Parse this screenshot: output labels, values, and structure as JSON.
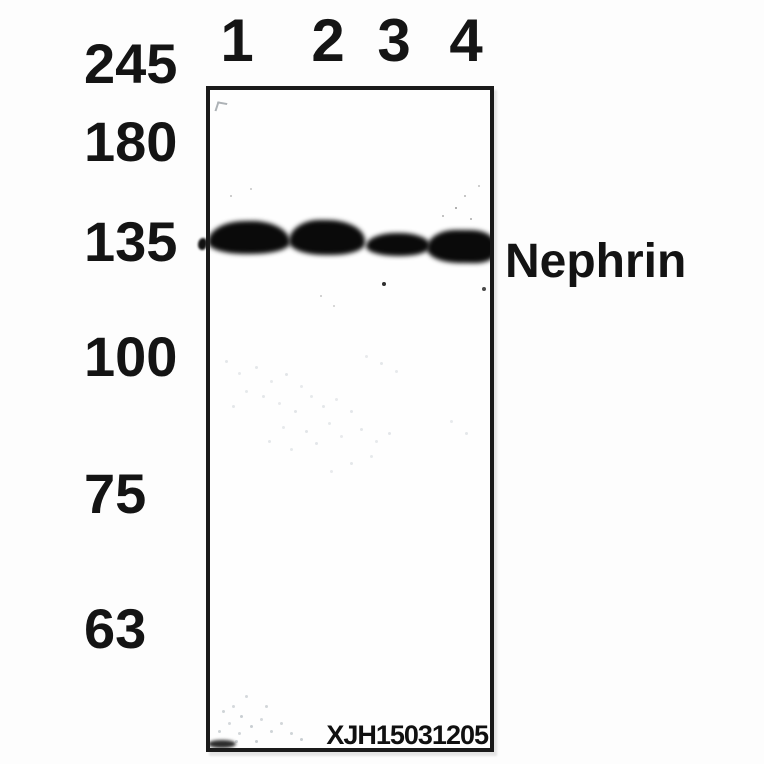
{
  "figure": {
    "type": "western-blot",
    "protein_label": "Nephrin",
    "watermark": "XJH15031205",
    "lane_labels": [
      "1",
      "2",
      "3",
      "4"
    ],
    "markers": [
      "245",
      "180",
      "135",
      "100",
      "75",
      "63"
    ],
    "bands": [
      {
        "lane": "1",
        "marker_level": "135",
        "intensity": "strong"
      },
      {
        "lane": "2",
        "marker_level": "135",
        "intensity": "strong"
      },
      {
        "lane": "3",
        "marker_level": "135",
        "intensity": "moderate"
      },
      {
        "lane": "4",
        "marker_level": "135",
        "intensity": "strong"
      }
    ],
    "colors": {
      "band": "#0a0a0a",
      "frame_border": "#1a1a1a",
      "text": "#131313",
      "background": "#fdfdfd"
    }
  }
}
